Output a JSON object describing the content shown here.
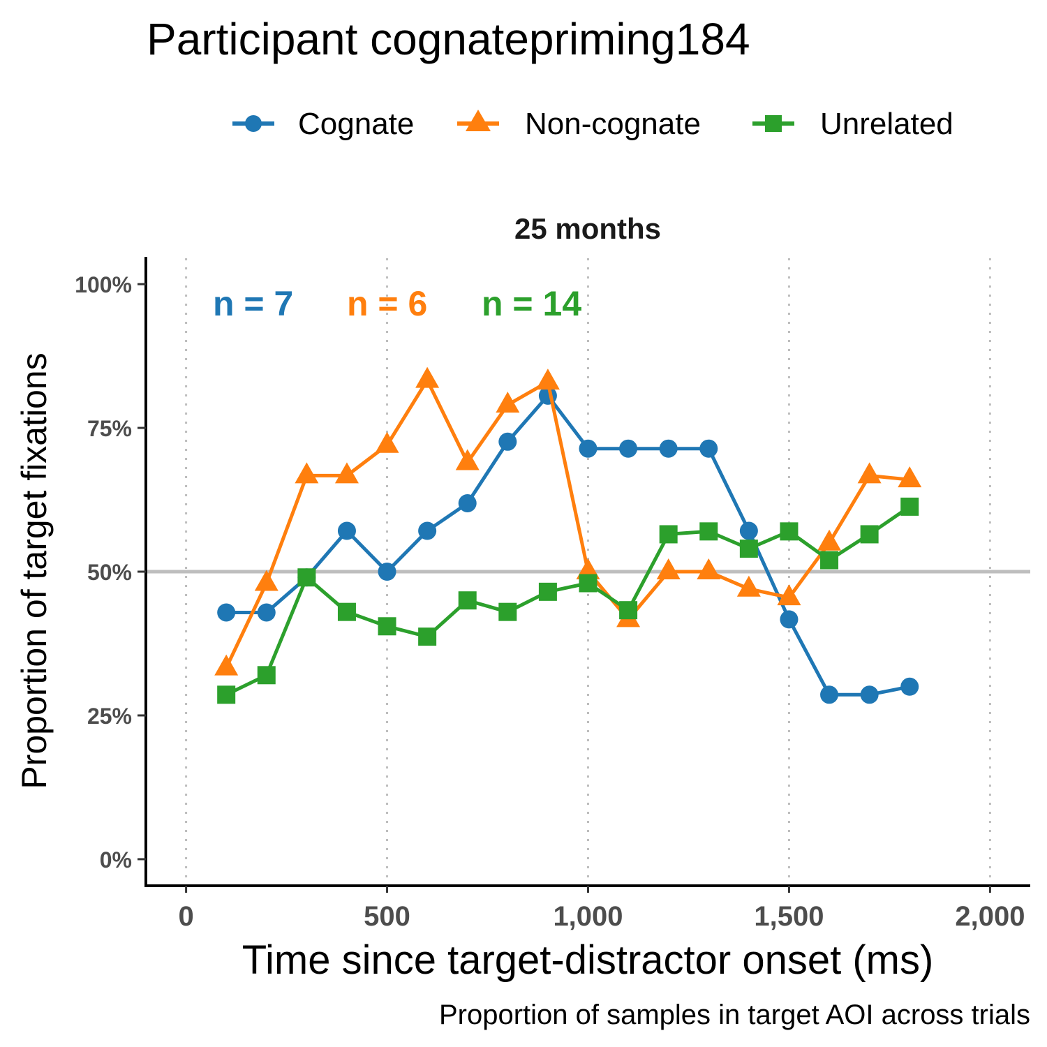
{
  "title": "Participant cognatepriming184",
  "caption": "Proportion of samples in target AOI across trials",
  "facet_label": "25 months",
  "legend": [
    {
      "label": "Cognate",
      "color": "#1f77b4",
      "shape": "circle"
    },
    {
      "label": "Non-cognate",
      "color": "#ff7f0e",
      "shape": "triangle"
    },
    {
      "label": "Unrelated",
      "color": "#2ca02c",
      "shape": "square"
    }
  ],
  "annotations": [
    {
      "text": "n = 7",
      "color": "#1f77b4"
    },
    {
      "text": "n = 6",
      "color": "#ff7f0e"
    },
    {
      "text": "n = 14",
      "color": "#2ca02c"
    }
  ],
  "chart_data": {
    "type": "line",
    "title": "Participant cognatepriming184",
    "xlabel": "Time since target-distractor onset (ms)",
    "ylabel": "Proportion of target fixations",
    "xlim": [
      -100,
      2100
    ],
    "ylim": [
      -0.045,
      1.045
    ],
    "x_ticks": [
      0,
      500,
      1000,
      1500,
      2000
    ],
    "x_tick_labels": [
      "0",
      "500",
      "1,000",
      "1,500",
      "2,000"
    ],
    "y_ticks": [
      0,
      0.25,
      0.5,
      0.75,
      1.0
    ],
    "y_tick_labels": [
      "0%",
      "25%",
      "50%",
      "75%",
      "100%"
    ],
    "reference_line_y": 0.5,
    "reference_line_color": "#bebebe",
    "x_grid": "dotted vertical at x ticks",
    "legend_position": "top",
    "x": [
      100,
      200,
      300,
      400,
      500,
      600,
      700,
      800,
      900,
      1000,
      1100,
      1200,
      1300,
      1400,
      1500,
      1600,
      1700,
      1800
    ],
    "series": [
      {
        "name": "Cognate",
        "color": "#1f77b4",
        "marker": "circle",
        "values": [
          0.429,
          0.429,
          0.49,
          0.571,
          0.5,
          0.571,
          0.619,
          0.726,
          0.806,
          0.714,
          0.714,
          0.714,
          0.714,
          0.571,
          0.417,
          0.286,
          0.286,
          0.3
        ]
      },
      {
        "name": "Non-cognate",
        "color": "#ff7f0e",
        "marker": "triangle",
        "values": [
          0.333,
          0.48,
          0.667,
          0.667,
          0.72,
          0.833,
          0.69,
          0.79,
          0.83,
          0.5,
          0.417,
          0.5,
          0.5,
          0.47,
          0.455,
          0.55,
          0.667,
          0.66
        ]
      },
      {
        "name": "Unrelated",
        "color": "#2ca02c",
        "marker": "square",
        "values": [
          0.286,
          0.32,
          0.49,
          0.43,
          0.405,
          0.387,
          0.45,
          0.43,
          0.465,
          0.48,
          0.433,
          0.565,
          0.57,
          0.54,
          0.57,
          0.52,
          0.565,
          0.613
        ]
      }
    ]
  }
}
